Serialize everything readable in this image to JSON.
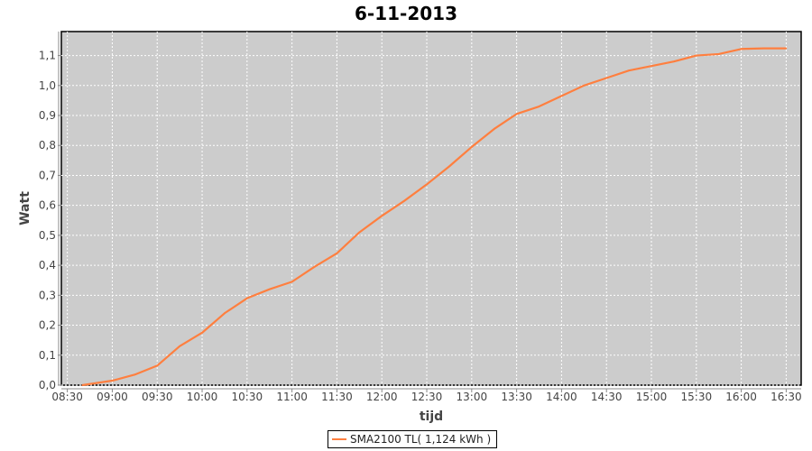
{
  "chart_data": {
    "type": "line",
    "title": "6-11-2013",
    "xlabel": "tijd",
    "ylabel": "Watt",
    "ylim": [
      0,
      1.18
    ],
    "yticks": [
      "0,0",
      "0,1",
      "0,2",
      "0,3",
      "0,4",
      "0,5",
      "0,6",
      "0,7",
      "0,8",
      "0,9",
      "1,0",
      "1,1"
    ],
    "xticks": [
      "08:30",
      "09:00",
      "09:30",
      "10:00",
      "10:30",
      "11:00",
      "11:30",
      "12:00",
      "12:30",
      "13:00",
      "13:30",
      "14:00",
      "14:30",
      "15:00",
      "15:30",
      "16:00",
      "16:30"
    ],
    "xlim": [
      "08:26",
      "16:40"
    ],
    "grid": true,
    "legend_position": "bottom",
    "background": "#cccccc",
    "series": [
      {
        "name": "SMA2100 TL( 1,124 kWh )",
        "color": "#ff7f3f",
        "x": [
          "08:40",
          "09:00",
          "09:15",
          "09:30",
          "09:45",
          "10:00",
          "10:15",
          "10:30",
          "10:45",
          "11:00",
          "11:15",
          "11:30",
          "11:45",
          "12:00",
          "12:15",
          "12:30",
          "12:45",
          "13:00",
          "13:15",
          "13:30",
          "13:45",
          "14:00",
          "14:15",
          "14:30",
          "14:45",
          "15:00",
          "15:15",
          "15:30",
          "15:45",
          "16:00",
          "16:15",
          "16:30"
        ],
        "values": [
          0.0,
          0.015,
          0.035,
          0.065,
          0.13,
          0.175,
          0.24,
          0.29,
          0.32,
          0.345,
          0.395,
          0.44,
          0.51,
          0.565,
          0.615,
          0.67,
          0.73,
          0.795,
          0.855,
          0.905,
          0.93,
          0.965,
          1.0,
          1.025,
          1.05,
          1.065,
          1.08,
          1.1,
          1.105,
          1.122,
          1.124,
          1.124
        ]
      }
    ]
  }
}
